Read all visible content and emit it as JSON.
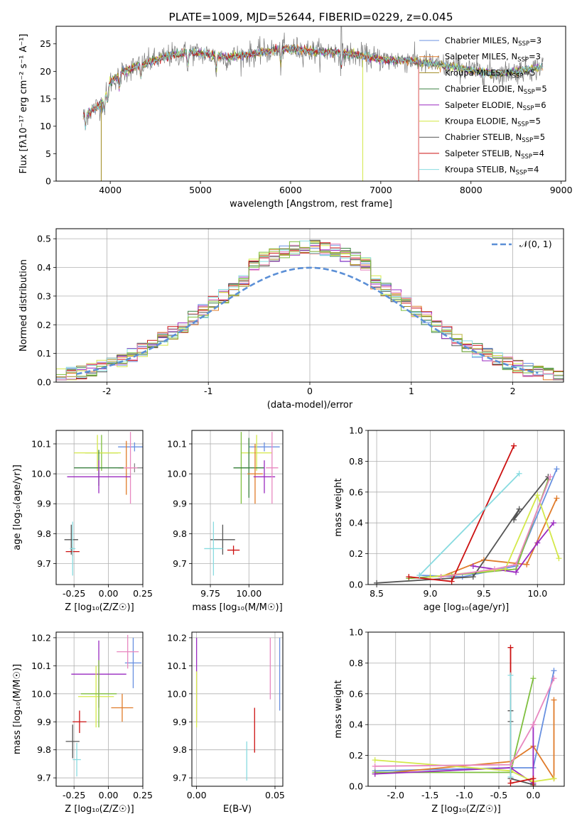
{
  "chart_data": [
    {
      "panel": "spectrum",
      "type": "line",
      "title": "PLATE=1009, MJD=52644, FIBERID=0229, z=0.045",
      "xlabel": "wavelength [Angstrom, rest frame]",
      "ylabel": "Flux [fλ10⁻¹⁷ erg cm⁻² s⁻¹ A⁻¹]",
      "xlim": [
        3400,
        9050
      ],
      "ylim": [
        0,
        28.2
      ],
      "xticks": [
        4000,
        5000,
        6000,
        7000,
        8000,
        9000
      ],
      "yticks": [
        0,
        5,
        10,
        15,
        20,
        25
      ],
      "legend_loc": "upper right",
      "legend": [
        "Chabrier MILES, N_SSP=3",
        "Salpeter MILES, N_SSP=3",
        "Kroupa MILES, N_SSP=5",
        "Chabrier ELODIE, N_SSP=5",
        "Salpeter ELODIE, N_SSP=6",
        "Kroupa ELODIE, N_SSP=5",
        "Chabrier STELIB, N_SSP=5",
        "Salpeter STELIB, N_SSP=4",
        "Kroupa STELIB, N_SSP=4"
      ],
      "continuum_points": {
        "x": [
          3700,
          3800,
          3900,
          4000,
          4150,
          4300,
          4500,
          4700,
          4900,
          5100,
          5300,
          5500,
          5700,
          5900,
          6100,
          6300,
          6500,
          6700,
          6900,
          7100,
          7300,
          7500,
          7700,
          7900,
          8100,
          8300,
          8500,
          8700,
          8800
        ],
        "y": [
          12,
          13,
          14,
          18,
          20,
          21,
          22,
          23,
          23.5,
          23,
          22.5,
          23,
          23.5,
          24,
          24,
          23.5,
          23.5,
          23,
          22.5,
          22,
          22,
          21.5,
          21,
          20.5,
          20,
          19.5,
          20,
          20.5,
          21
        ]
      },
      "model_ranges": [
        [
          3400,
          9050
        ],
        [
          3400,
          9050
        ],
        [
          3900,
          9050
        ],
        [
          3400,
          9050
        ],
        [
          3400,
          9050
        ],
        [
          3400,
          9050
        ],
        [
          3400,
          9050
        ],
        [
          3400,
          7420
        ],
        [
          3400,
          9050
        ]
      ],
      "data_series_name": "observed spectrum (grey)"
    },
    {
      "panel": "residuals",
      "type": "histogram",
      "xlabel": "(data-model)/error",
      "ylabel": "Normed distribution",
      "xlim": [
        -2.5,
        2.5
      ],
      "ylim": [
        0,
        0.535
      ],
      "xticks": [
        -2,
        -1,
        0,
        1,
        2
      ],
      "yticks": [
        0,
        0.1,
        0.2,
        0.3,
        0.4,
        0.5
      ],
      "legend": [
        "𝒩(0, 1)"
      ],
      "reference_curve": "gaussian mean 0 sigma 1",
      "bin_width": 0.1,
      "bin_range": [
        -2.5,
        2.5
      ]
    },
    {
      "panel": "age_vs_Z",
      "type": "errorbar",
      "xlabel": "Z [log₁₀(Z/Z☉)]",
      "ylabel": "age  [log₁₀(age/yr)]",
      "xlim": [
        -0.38,
        0.25
      ],
      "ylim": [
        9.63,
        10.145
      ],
      "xticks": [
        -0.25,
        0,
        0.25
      ],
      "yticks": [
        9.7,
        9.8,
        9.9,
        10.0,
        10.1
      ],
      "points": [
        {
          "x": 0.19,
          "xerr": 0.12,
          "y": 10.09,
          "yerr": 0.015,
          "color": "#6890e0"
        },
        {
          "x": 0.19,
          "xerr": 0.12,
          "y": 10.02,
          "yerr": 0.015,
          "color": "#888888"
        },
        {
          "x": 0.13,
          "xerr": 0.05,
          "y": 10.02,
          "yerr": 0.09,
          "color": "#e07b2a"
        },
        {
          "x": 0.16,
          "xerr": 0.05,
          "y": 10.02,
          "yerr": 0.12,
          "color": "#e888c0"
        },
        {
          "x": -0.05,
          "xerr": 0.12,
          "y": 10.07,
          "yerr": 0.06,
          "color": "#7fbf3f"
        },
        {
          "x": -0.08,
          "xerr": 0.17,
          "y": 10.07,
          "yerr": 0.06,
          "color": "#d4e84a"
        },
        {
          "x": -0.07,
          "xerr": 0.18,
          "y": 10.02,
          "yerr": 0.06,
          "color": "#3a8040"
        },
        {
          "x": -0.07,
          "xerr": 0.23,
          "y": 9.99,
          "yerr": 0.055,
          "color": "#9a2ac0"
        },
        {
          "x": -0.27,
          "xerr": 0.05,
          "y": 9.78,
          "yerr": 0.05,
          "color": "#555555"
        },
        {
          "x": -0.26,
          "xerr": 0.05,
          "y": 9.74,
          "yerr": 0.015,
          "color": "#cc1111"
        },
        {
          "x": -0.26,
          "xerr": 0.02,
          "y": 9.75,
          "yerr": 0.09,
          "color": "#88dbe0"
        }
      ]
    },
    {
      "panel": "age_vs_mass",
      "type": "errorbar",
      "xlabel": "mass [log₁₀(M/M☉)]",
      "ylabel": "",
      "xlim": [
        9.63,
        10.22
      ],
      "ylim": [
        9.63,
        10.145
      ],
      "xticks": [
        9.75,
        10.0
      ],
      "yticks": [
        9.7,
        9.8,
        9.9,
        10.0,
        10.1
      ],
      "points": [
        {
          "x": 10.1,
          "xerr": 0.1,
          "y": 10.09,
          "yerr": 0.015,
          "color": "#6890e0"
        },
        {
          "x": 10.05,
          "xerr": 0.1,
          "y": 10.07,
          "yerr": 0.06,
          "color": "#d4e84a"
        },
        {
          "x": 9.95,
          "xerr": 0.05,
          "y": 10.02,
          "yerr": 0.12,
          "color": "#7fbf3f"
        },
        {
          "x": 10.0,
          "xerr": 0.1,
          "y": 10.02,
          "yerr": 0.1,
          "color": "#3a8040"
        },
        {
          "x": 10.04,
          "xerr": 0.05,
          "y": 10.0,
          "yerr": 0.1,
          "color": "#e07b2a"
        },
        {
          "x": 10.1,
          "xerr": 0.07,
          "y": 9.99,
          "yerr": 0.055,
          "color": "#9a2ac0"
        },
        {
          "x": 10.15,
          "xerr": 0.04,
          "y": 10.02,
          "yerr": 0.12,
          "color": "#e888c0"
        },
        {
          "x": 9.83,
          "xerr": 0.08,
          "y": 9.78,
          "yerr": 0.05,
          "color": "#555555"
        },
        {
          "x": 9.9,
          "xerr": 0.04,
          "y": 9.745,
          "yerr": 0.015,
          "color": "#cc1111"
        },
        {
          "x": 9.77,
          "xerr": 0.06,
          "y": 9.75,
          "yerr": 0.09,
          "color": "#88dbe0"
        }
      ]
    },
    {
      "panel": "weight_vs_age",
      "type": "line",
      "xlabel": "age  [log₁₀(age/yr)]",
      "ylabel": "mass weight",
      "xlim": [
        8.42,
        10.25
      ],
      "ylim": [
        0,
        1.0
      ],
      "xticks": [
        8.5,
        9.0,
        9.5,
        10.0
      ],
      "yticks": [
        0,
        0.2,
        0.4,
        0.6,
        0.8,
        1.0
      ],
      "series": [
        {
          "color": "#6890e0",
          "x": [
            8.9,
            9.3,
            9.8,
            10.18
          ],
          "y": [
            0.06,
            0.05,
            0.12,
            0.75
          ]
        },
        {
          "color": "#e07b2a",
          "x": [
            9.1,
            9.5,
            9.9,
            10.18
          ],
          "y": [
            0.05,
            0.16,
            0.13,
            0.56
          ]
        },
        {
          "color": "#7fbf3f",
          "x": [
            8.8,
            9.2,
            9.8,
            10.1
          ],
          "y": [
            0.04,
            0.06,
            0.1,
            0.68
          ]
        },
        {
          "color": "#9a2ac0",
          "x": [
            9.4,
            9.8,
            10.0,
            10.15
          ],
          "y": [
            0.12,
            0.08,
            0.27,
            0.4
          ]
        },
        {
          "color": "#d4e84a",
          "x": [
            9.0,
            9.7,
            10.0,
            10.2
          ],
          "y": [
            0.05,
            0.1,
            0.58,
            0.17
          ]
        },
        {
          "color": "#555555",
          "x": [
            8.5,
            9.4,
            9.83,
            9.78,
            10.1
          ],
          "y": [
            0.01,
            0.05,
            0.49,
            0.42,
            0.7
          ]
        },
        {
          "color": "#cc1111",
          "x": [
            8.8,
            9.2,
            9.78
          ],
          "y": [
            0.05,
            0.02,
            0.9
          ]
        },
        {
          "color": "#88dbe0",
          "x": [
            8.9,
            9.83
          ],
          "y": [
            0.06,
            0.72
          ]
        },
        {
          "color": "#e888c0",
          "x": [
            9.1,
            9.6,
            9.8,
            10.12
          ],
          "y": [
            0.05,
            0.1,
            0.13,
            0.7
          ]
        }
      ]
    },
    {
      "panel": "mass_vs_Z",
      "type": "errorbar",
      "xlabel": "Z [log₁₀(Z/Z☉)]",
      "ylabel": "mass [log₁₀(M/M☉)]",
      "xlim": [
        -0.38,
        0.25
      ],
      "ylim": [
        9.67,
        10.22
      ],
      "xticks": [
        -0.25,
        0,
        0.25
      ],
      "yticks": [
        9.7,
        9.8,
        9.9,
        10.0,
        10.1,
        10.2
      ],
      "points": [
        {
          "x": 0.18,
          "xerr": 0.06,
          "y": 10.11,
          "yerr": 0.09,
          "color": "#6890e0"
        },
        {
          "x": 0.14,
          "xerr": 0.08,
          "y": 10.15,
          "yerr": 0.06,
          "color": "#e888c0"
        },
        {
          "x": 0.1,
          "xerr": 0.08,
          "y": 9.95,
          "yerr": 0.05,
          "color": "#e07b2a"
        },
        {
          "x": -0.07,
          "xerr": 0.2,
          "y": 10.07,
          "yerr": 0.12,
          "color": "#9a2ac0"
        },
        {
          "x": -0.09,
          "xerr": 0.13,
          "y": 9.99,
          "yerr": 0.11,
          "color": "#d4e84a"
        },
        {
          "x": -0.07,
          "xerr": 0.13,
          "y": 10.0,
          "yerr": 0.12,
          "color": "#7fbf3f"
        },
        {
          "x": -0.21,
          "xerr": 0.05,
          "y": 9.9,
          "yerr": 0.04,
          "color": "#cc1111"
        },
        {
          "x": -0.26,
          "xerr": 0.05,
          "y": 9.83,
          "yerr": 0.06,
          "color": "#555555"
        },
        {
          "x": -0.23,
          "xerr": 0.03,
          "y": 9.765,
          "yerr": 0.06,
          "color": "#88dbe0"
        }
      ]
    },
    {
      "panel": "mass_vs_EBV",
      "type": "errorbar",
      "xlabel": "E(B-V)",
      "ylabel": "",
      "xlim": [
        -0.003,
        0.055
      ],
      "ylim": [
        9.67,
        10.22
      ],
      "xticks": [
        0.0,
        0.05
      ],
      "yticks": [
        9.7,
        9.8,
        9.9,
        10.0,
        10.1,
        10.2
      ],
      "points": [
        {
          "x": 0.0,
          "y": 10.05,
          "yerr": 0.15,
          "color": "#9a2ac0"
        },
        {
          "x": 0.0,
          "y": 9.98,
          "yerr": 0.1,
          "color": "#d4e84a"
        },
        {
          "x": 0.053,
          "y": 10.07,
          "yerr": 0.13,
          "color": "#6890e0"
        },
        {
          "x": 0.047,
          "y": 10.09,
          "yerr": 0.11,
          "color": "#e888c0"
        },
        {
          "x": 0.037,
          "y": 9.87,
          "yerr": 0.08,
          "color": "#cc1111"
        },
        {
          "x": 0.032,
          "y": 9.76,
          "yerr": 0.07,
          "color": "#88dbe0"
        }
      ]
    },
    {
      "panel": "weight_vs_Z",
      "type": "line",
      "xlabel": "Z [log₁₀(Z/Z☉)]",
      "ylabel": "mass weight",
      "xlim": [
        -2.4,
        0.45
      ],
      "ylim": [
        0,
        1.0
      ],
      "xticks": [
        -2.0,
        -1.5,
        -1.0,
        -0.5,
        0.0
      ],
      "yticks": [
        0,
        0.2,
        0.4,
        0.6,
        0.8,
        1.0
      ],
      "series": [
        {
          "color": "#6890e0",
          "x": [
            -2.3,
            -0.33,
            0.0,
            0.3
          ],
          "y": [
            0.1,
            0.12,
            0.12,
            0.75
          ]
        },
        {
          "color": "#e07b2a",
          "x": [
            -2.3,
            -0.33,
            0.0,
            0.3,
            0.3
          ],
          "y": [
            0.08,
            0.16,
            0.26,
            0.05,
            0.56
          ]
        },
        {
          "color": "#7fbf3f",
          "x": [
            -2.3,
            -0.33,
            0.0
          ],
          "y": [
            0.09,
            0.09,
            0.7
          ]
        },
        {
          "color": "#9a2ac0",
          "x": [
            -2.3,
            -0.33,
            0.0,
            0.0
          ],
          "y": [
            0.08,
            0.12,
            0.02,
            0.4
          ]
        },
        {
          "color": "#d4e84a",
          "x": [
            -2.3,
            -0.33,
            0.0,
            0.3
          ],
          "y": [
            0.17,
            0.1,
            0.03,
            0.05
          ]
        },
        {
          "color": "#555555",
          "x": [
            -0.33,
            -0.33,
            -0.33,
            0.0
          ],
          "y": [
            0.49,
            0.42,
            0.05,
            0.01
          ]
        },
        {
          "color": "#cc1111",
          "x": [
            -0.33,
            -0.33,
            0.0,
            0.0
          ],
          "y": [
            0.9,
            0.02,
            0.05,
            0.0
          ]
        },
        {
          "color": "#88dbe0",
          "x": [
            -0.33,
            -0.33
          ],
          "y": [
            0.72,
            0.06
          ]
        },
        {
          "color": "#e888c0",
          "x": [
            -2.3,
            -0.33,
            0.0,
            0.3
          ],
          "y": [
            0.13,
            0.14,
            0.4,
            0.7
          ]
        }
      ]
    }
  ]
}
